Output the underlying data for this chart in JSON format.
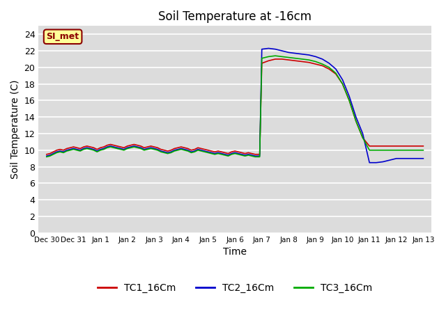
{
  "title": "Soil Temperature at -16cm",
  "xlabel": "Time",
  "ylabel": "Soil Temperature (C)",
  "background_color": "#dcdcdc",
  "ylim": [
    0,
    25
  ],
  "yticks": [
    0,
    2,
    4,
    6,
    8,
    10,
    12,
    14,
    16,
    18,
    20,
    22,
    24
  ],
  "xtick_labels": [
    "Dec 30",
    "Dec 31",
    "Jan 1",
    "Jan 2",
    "Jan 3",
    "Jan 4",
    "Jan 5",
    "Jan 6",
    "Jan 7",
    "Jan 8",
    "Jan 9",
    "Jan 10",
    "Jan 11",
    "Jan 12",
    "Jan 13"
  ],
  "xlim": [
    -0.3,
    14.3
  ],
  "legend_labels": [
    "TC1_16Cm",
    "TC2_16Cm",
    "TC3_16Cm"
  ],
  "legend_colors": [
    "#cc0000",
    "#0000cc",
    "#00aa00"
  ],
  "annotation_text": "SI_met",
  "annotation_bg": "#ffff99",
  "annotation_border": "#8b0000",
  "series": {
    "TC1_16Cm": {
      "color": "#cc0000",
      "x": [
        0.0,
        0.125,
        0.25,
        0.375,
        0.5,
        0.625,
        0.75,
        0.875,
        1.0,
        1.125,
        1.25,
        1.375,
        1.5,
        1.625,
        1.75,
        1.875,
        2.0,
        2.125,
        2.25,
        2.375,
        2.5,
        2.625,
        2.75,
        2.875,
        3.0,
        3.125,
        3.25,
        3.375,
        3.5,
        3.625,
        3.75,
        3.875,
        4.0,
        4.125,
        4.25,
        4.375,
        4.5,
        4.625,
        4.75,
        4.875,
        5.0,
        5.125,
        5.25,
        5.375,
        5.5,
        5.625,
        5.75,
        5.875,
        6.0,
        6.125,
        6.25,
        6.375,
        6.5,
        6.625,
        6.75,
        6.875,
        7.0,
        7.125,
        7.25,
        7.375,
        7.5,
        7.625,
        7.75,
        7.875,
        7.92,
        8.0,
        8.25,
        8.5,
        8.75,
        9.0,
        9.25,
        9.5,
        9.75,
        10.0,
        10.25,
        10.5,
        10.75,
        11.0,
        11.25,
        11.5,
        11.75,
        12.0,
        12.25,
        12.5,
        12.75,
        13.0,
        13.25,
        13.5,
        13.75,
        14.0
      ],
      "y": [
        9.5,
        9.6,
        9.8,
        10.0,
        10.1,
        10.0,
        10.2,
        10.3,
        10.4,
        10.3,
        10.2,
        10.4,
        10.5,
        10.4,
        10.3,
        10.1,
        10.3,
        10.4,
        10.6,
        10.7,
        10.6,
        10.5,
        10.4,
        10.3,
        10.5,
        10.6,
        10.7,
        10.6,
        10.5,
        10.3,
        10.4,
        10.5,
        10.4,
        10.3,
        10.1,
        10.0,
        9.9,
        10.0,
        10.2,
        10.3,
        10.4,
        10.3,
        10.2,
        10.0,
        10.1,
        10.3,
        10.2,
        10.1,
        10.0,
        9.9,
        9.8,
        9.9,
        9.8,
        9.7,
        9.6,
        9.8,
        9.9,
        9.8,
        9.7,
        9.6,
        9.7,
        9.6,
        9.5,
        9.5,
        9.5,
        20.5,
        20.8,
        21.0,
        21.0,
        20.9,
        20.8,
        20.7,
        20.6,
        20.4,
        20.2,
        19.8,
        19.2,
        18.0,
        16.0,
        13.5,
        11.5,
        10.5,
        10.5,
        10.5,
        10.5,
        10.5,
        10.5,
        10.5,
        10.5,
        10.5
      ]
    },
    "TC2_16Cm": {
      "color": "#0000cc",
      "x": [
        0.0,
        0.125,
        0.25,
        0.375,
        0.5,
        0.625,
        0.75,
        0.875,
        1.0,
        1.125,
        1.25,
        1.375,
        1.5,
        1.625,
        1.75,
        1.875,
        2.0,
        2.125,
        2.25,
        2.375,
        2.5,
        2.625,
        2.75,
        2.875,
        3.0,
        3.125,
        3.25,
        3.375,
        3.5,
        3.625,
        3.75,
        3.875,
        4.0,
        4.125,
        4.25,
        4.375,
        4.5,
        4.625,
        4.75,
        4.875,
        5.0,
        5.125,
        5.25,
        5.375,
        5.5,
        5.625,
        5.75,
        5.875,
        6.0,
        6.125,
        6.25,
        6.375,
        6.5,
        6.625,
        6.75,
        6.875,
        7.0,
        7.125,
        7.25,
        7.375,
        7.5,
        7.625,
        7.75,
        7.875,
        7.92,
        8.0,
        8.25,
        8.5,
        8.75,
        9.0,
        9.25,
        9.5,
        9.75,
        10.0,
        10.25,
        10.5,
        10.75,
        11.0,
        11.25,
        11.5,
        11.75,
        12.0,
        12.25,
        12.5,
        12.75,
        13.0,
        13.25,
        13.5,
        13.75,
        14.0
      ],
      "y": [
        9.3,
        9.4,
        9.6,
        9.8,
        9.9,
        9.8,
        10.0,
        10.1,
        10.2,
        10.1,
        10.0,
        10.2,
        10.3,
        10.2,
        10.1,
        9.9,
        10.1,
        10.2,
        10.4,
        10.5,
        10.4,
        10.3,
        10.2,
        10.1,
        10.3,
        10.4,
        10.5,
        10.4,
        10.3,
        10.1,
        10.2,
        10.3,
        10.2,
        10.1,
        9.9,
        9.8,
        9.7,
        9.8,
        10.0,
        10.1,
        10.2,
        10.1,
        10.0,
        9.8,
        9.9,
        10.1,
        10.0,
        9.9,
        9.8,
        9.7,
        9.6,
        9.7,
        9.6,
        9.5,
        9.4,
        9.6,
        9.7,
        9.6,
        9.5,
        9.4,
        9.5,
        9.4,
        9.3,
        9.3,
        9.3,
        22.2,
        22.3,
        22.2,
        22.0,
        21.8,
        21.7,
        21.6,
        21.5,
        21.3,
        21.0,
        20.5,
        19.8,
        18.5,
        16.5,
        14.0,
        12.0,
        8.5,
        8.5,
        8.6,
        8.8,
        9.0,
        9.0,
        9.0,
        9.0,
        9.0
      ]
    },
    "TC3_16Cm": {
      "color": "#00aa00",
      "x": [
        0.0,
        0.125,
        0.25,
        0.375,
        0.5,
        0.625,
        0.75,
        0.875,
        1.0,
        1.125,
        1.25,
        1.375,
        1.5,
        1.625,
        1.75,
        1.875,
        2.0,
        2.125,
        2.25,
        2.375,
        2.5,
        2.625,
        2.75,
        2.875,
        3.0,
        3.125,
        3.25,
        3.375,
        3.5,
        3.625,
        3.75,
        3.875,
        4.0,
        4.125,
        4.25,
        4.375,
        4.5,
        4.625,
        4.75,
        4.875,
        5.0,
        5.125,
        5.25,
        5.375,
        5.5,
        5.625,
        5.75,
        5.875,
        6.0,
        6.125,
        6.25,
        6.375,
        6.5,
        6.625,
        6.75,
        6.875,
        7.0,
        7.125,
        7.25,
        7.375,
        7.5,
        7.625,
        7.75,
        7.875,
        7.92,
        8.0,
        8.25,
        8.5,
        8.75,
        9.0,
        9.25,
        9.5,
        9.75,
        10.0,
        10.25,
        10.5,
        10.75,
        11.0,
        11.25,
        11.5,
        11.75,
        12.0,
        12.25,
        12.5,
        12.75,
        13.0,
        13.25,
        13.5,
        13.75,
        14.0
      ],
      "y": [
        9.2,
        9.3,
        9.5,
        9.7,
        9.8,
        9.7,
        9.9,
        10.0,
        10.1,
        10.0,
        9.9,
        10.1,
        10.2,
        10.1,
        10.0,
        9.8,
        10.0,
        10.1,
        10.3,
        10.4,
        10.3,
        10.2,
        10.1,
        10.0,
        10.2,
        10.3,
        10.4,
        10.3,
        10.2,
        10.0,
        10.1,
        10.2,
        10.1,
        10.0,
        9.8,
        9.7,
        9.6,
        9.7,
        9.9,
        10.0,
        10.1,
        10.0,
        9.9,
        9.7,
        9.8,
        10.0,
        9.9,
        9.8,
        9.7,
        9.6,
        9.5,
        9.6,
        9.5,
        9.4,
        9.3,
        9.5,
        9.6,
        9.5,
        9.4,
        9.3,
        9.4,
        9.3,
        9.2,
        9.2,
        9.2,
        21.1,
        21.3,
        21.4,
        21.3,
        21.2,
        21.1,
        21.0,
        20.9,
        20.7,
        20.4,
        20.0,
        19.3,
        18.0,
        16.0,
        13.5,
        11.5,
        10.0,
        10.0,
        10.0,
        10.0,
        10.0,
        10.0,
        10.0,
        10.0,
        10.0
      ]
    }
  }
}
